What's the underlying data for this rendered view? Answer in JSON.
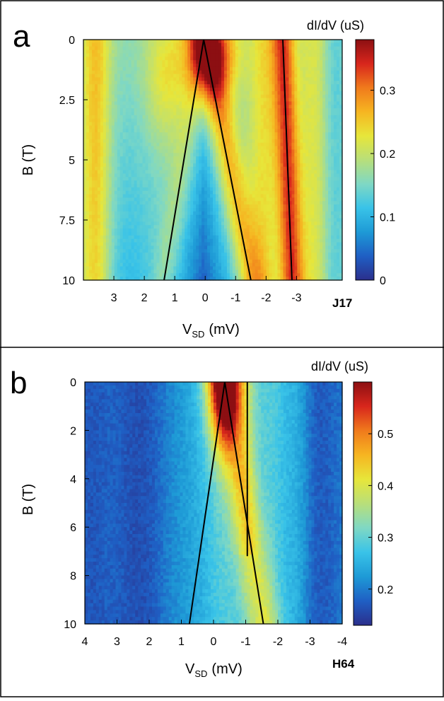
{
  "colors": {
    "jet": [
      "#2b2f8c",
      "#1f5fc4",
      "#1e9ad6",
      "#39c3e8",
      "#7fd8c4",
      "#b8df7a",
      "#e7e63a",
      "#f6b521",
      "#f07a1c",
      "#d8261c",
      "#8c0f12"
    ]
  },
  "chart_data": [
    {
      "type": "heatmap",
      "panel_label": "a",
      "device": "J17",
      "xlabel_main": "V",
      "xlabel_sub": "SD",
      "xlabel_unit": "(mV)",
      "ylabel": "B (T)",
      "xlim": [
        4,
        -4.5
      ],
      "ylim": [
        0,
        10
      ],
      "x_ticks": [
        3,
        2,
        1,
        0,
        -1,
        -2,
        -3
      ],
      "x_tick_labels": [
        "3",
        "2",
        "1",
        "0",
        "-1",
        "-2",
        "-3"
      ],
      "y_ticks": [
        0,
        2.5,
        5,
        7.5,
        10
      ],
      "y_tick_labels": [
        "0",
        "2.5",
        "5",
        "7.5",
        "10"
      ],
      "colorbar_label": "dI/dV (uS)",
      "colorbar_range": [
        0,
        0.38
      ],
      "colorbar_ticks": [
        0,
        0.1,
        0.2,
        0.3
      ],
      "colorbar_tick_labels": [
        "0",
        "0.1",
        "0.2",
        "0.3"
      ],
      "lines": [
        {
          "x": [
            0.05,
            1.35
          ],
          "y": [
            0,
            10
          ]
        },
        {
          "x": [
            0.05,
            -1.5
          ],
          "y": [
            0,
            10
          ]
        },
        {
          "x": [
            -2.55,
            -2.85
          ],
          "y": [
            0,
            10
          ]
        }
      ]
    },
    {
      "type": "heatmap",
      "panel_label": "b",
      "device": "H64",
      "xlabel_main": "V",
      "xlabel_sub": "SD",
      "xlabel_unit": "(mV)",
      "ylabel": "B (T)",
      "xlim": [
        4,
        -4
      ],
      "ylim": [
        0,
        10
      ],
      "x_ticks": [
        4,
        3,
        2,
        1,
        0,
        -1,
        -2,
        -3,
        -4
      ],
      "x_tick_labels": [
        "4",
        "3",
        "2",
        "1",
        "0",
        "-1",
        "-2",
        "-3",
        "-4"
      ],
      "y_ticks": [
        0,
        2,
        4,
        6,
        8,
        10
      ],
      "y_tick_labels": [
        "0",
        "2",
        "4",
        "6",
        "8",
        "10"
      ],
      "colorbar_label": "dI/dV (uS)",
      "colorbar_range": [
        0.13,
        0.6
      ],
      "colorbar_ticks": [
        0.2,
        0.3,
        0.4,
        0.5
      ],
      "colorbar_tick_labels": [
        "0.2",
        "0.3",
        "0.4",
        "0.5"
      ],
      "lines": [
        {
          "x": [
            -0.35,
            0.75
          ],
          "y": [
            0,
            10
          ]
        },
        {
          "x": [
            -0.35,
            -1.55
          ],
          "y": [
            0,
            10
          ]
        },
        {
          "x": [
            -1.05,
            -1.05
          ],
          "y": [
            0,
            7.2
          ]
        }
      ]
    }
  ]
}
